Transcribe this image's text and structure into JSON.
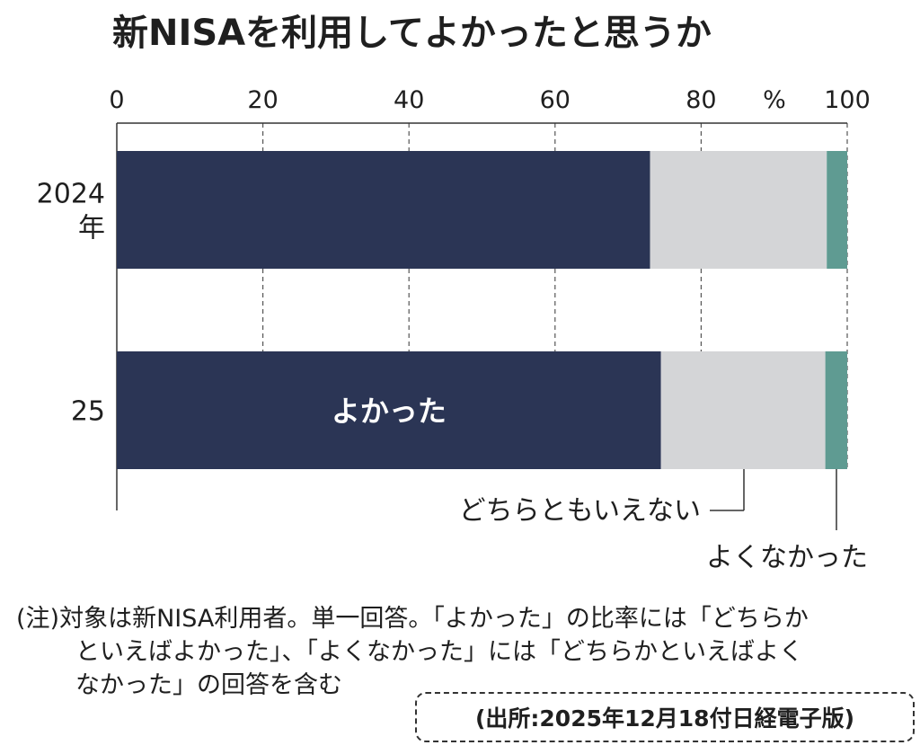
{
  "chart_data": {
    "type": "bar",
    "orientation": "horizontal",
    "stacked": true,
    "title": "新NISAを利用してよかったと思うか",
    "unit": "%",
    "xlim": [
      0,
      100
    ],
    "x_ticks": [
      "0",
      "20",
      "40",
      "60",
      "80",
      "100"
    ],
    "grid": "dashed vertical",
    "categories": [
      [
        "2024",
        "年"
      ],
      [
        "25"
      ]
    ],
    "series": [
      {
        "name": "よかった",
        "values": [
          73,
          74.5
        ],
        "color": "#2b3555",
        "text_color": "#ffffff"
      },
      {
        "name": "どちらともいえない",
        "values": [
          24.2,
          22.5
        ],
        "color": "#d4d5d7"
      },
      {
        "name": "よくなかった",
        "values": [
          2.8,
          3.0
        ],
        "color": "#5f9b92"
      }
    ]
  },
  "note": {
    "lines": [
      "(注)対象は新NISA利用者。単一回答。「よかった」の比率には「どちらか",
      "といえばよかった」、「よくなかった」には「どちらかといえばよく",
      "なかった」の回答を含む"
    ]
  },
  "source": "(出所:2025年12月18付日経電子版)"
}
